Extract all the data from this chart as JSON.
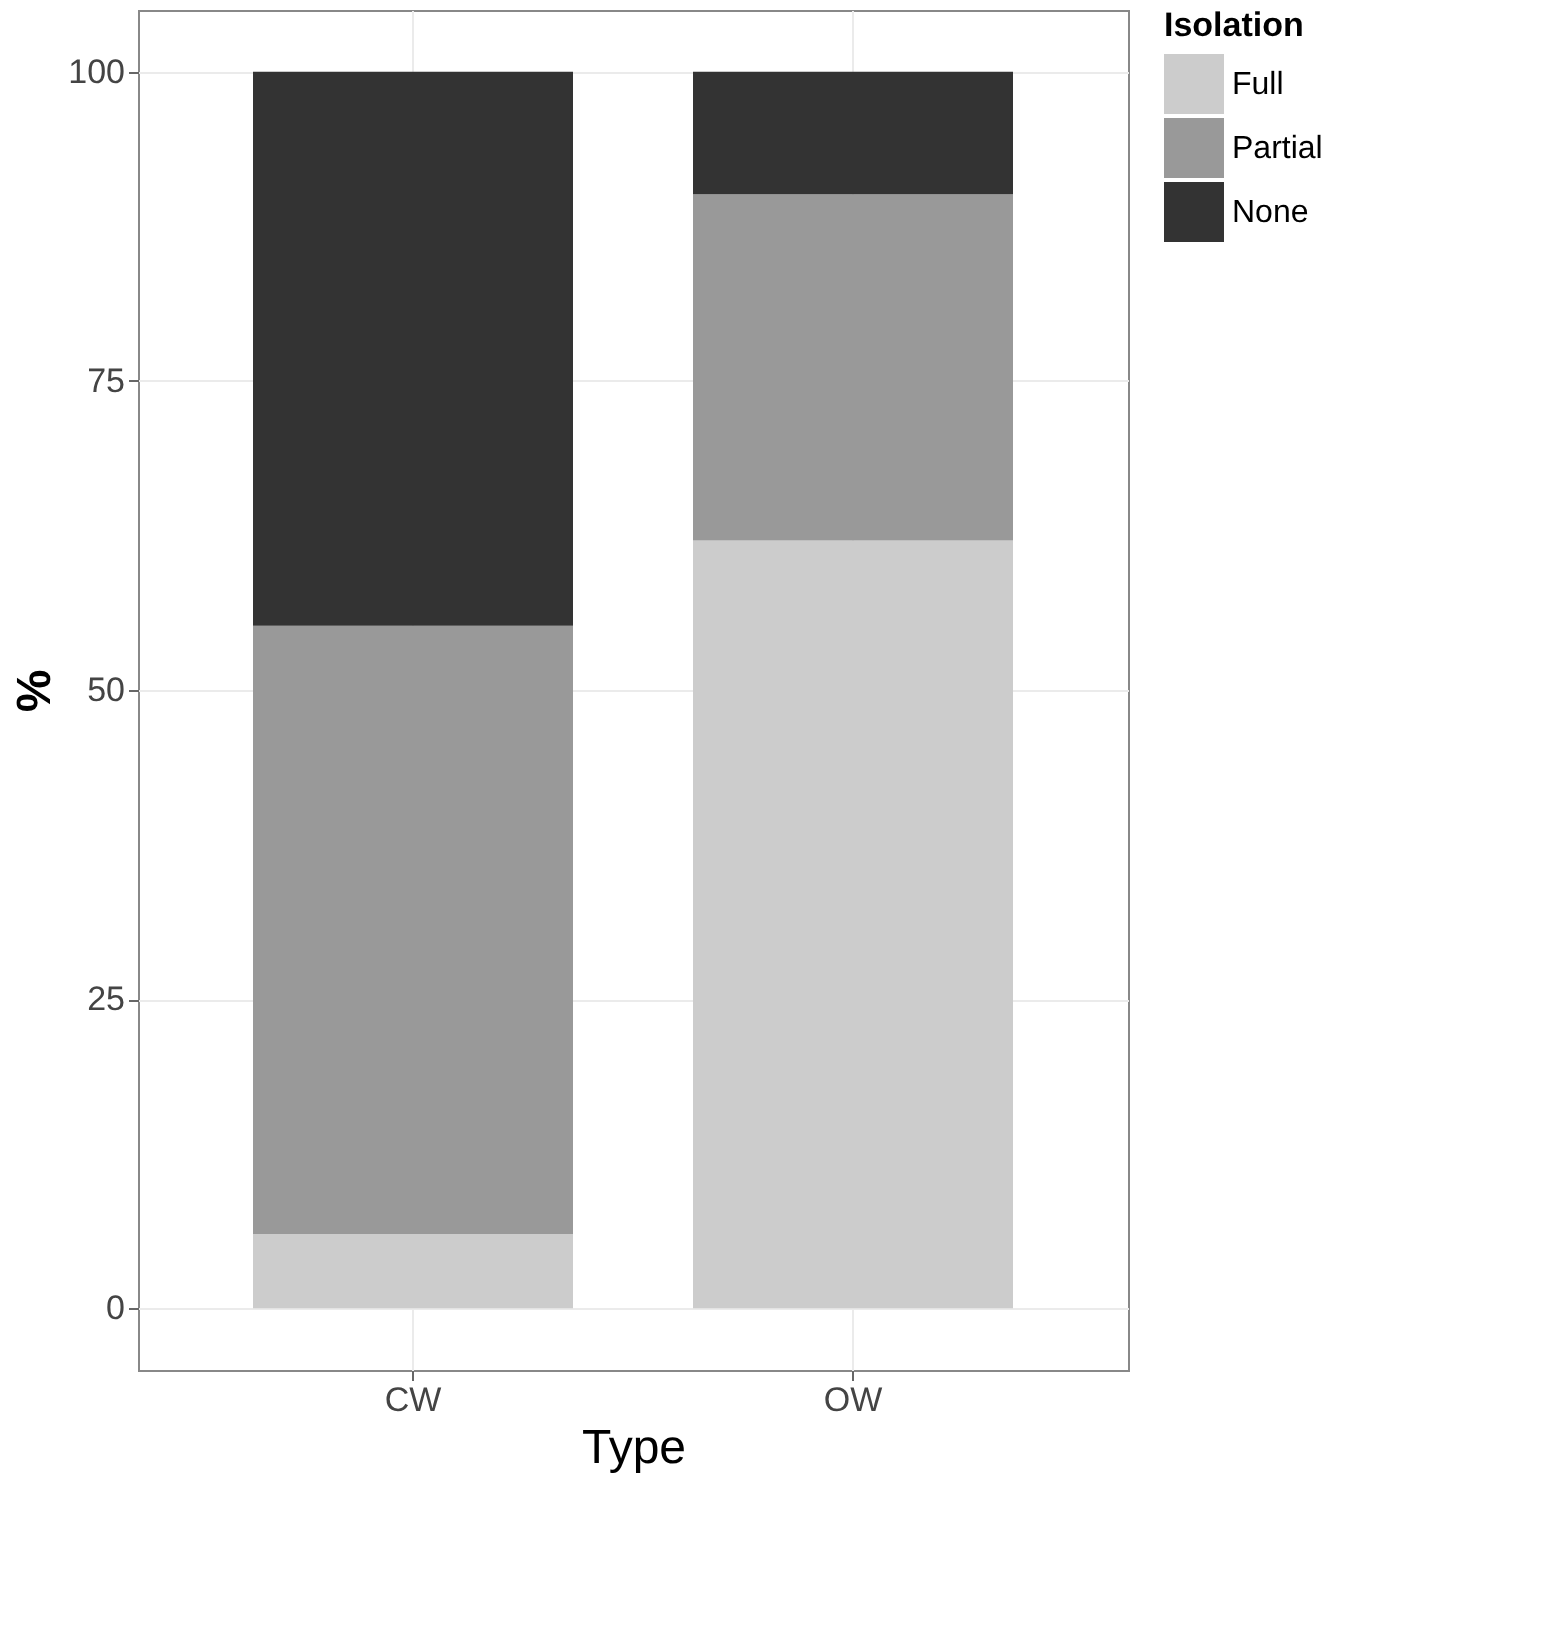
{
  "chart_data": {
    "type": "bar",
    "xlabel": "Type",
    "ylabel": "%",
    "legend_title": "Isolation",
    "categories": [
      "CW",
      "OW"
    ],
    "stacked": true,
    "series": [
      {
        "name": "Full",
        "color": "#cccccc",
        "values": [
          6.0,
          62.1
        ]
      },
      {
        "name": "Partial",
        "color": "#999999",
        "values": [
          49.2,
          28.0
        ]
      },
      {
        "name": "None",
        "color": "#333333",
        "values": [
          44.8,
          9.9
        ]
      }
    ],
    "ylim": [
      -5,
      105
    ],
    "yticks": [
      0,
      25,
      50,
      75,
      100
    ],
    "grid": true,
    "legend": "right"
  }
}
